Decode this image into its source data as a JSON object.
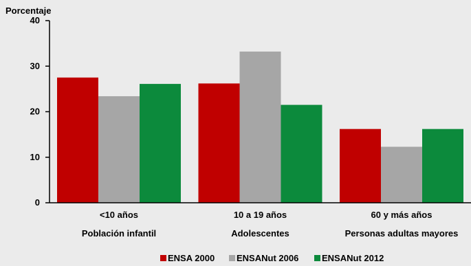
{
  "chart_data": {
    "type": "bar",
    "ylabel": "Porcentaje",
    "ylim": [
      0,
      40
    ],
    "yticks": [
      0,
      10,
      20,
      30,
      40
    ],
    "categories": [
      "<10 años",
      "10 a 19 años",
      "60 y más años"
    ],
    "group_labels": [
      "Población infantil",
      "Adolescentes",
      "Personas adultas mayores"
    ],
    "series": [
      {
        "name": "ENSA 2000",
        "color": "#c00000",
        "values": [
          27.5,
          26.2,
          16.2
        ]
      },
      {
        "name": "ENSANut 2006",
        "color": "#a6a6a6",
        "values": [
          23.4,
          33.2,
          12.3
        ]
      },
      {
        "name": "ENSANut 2012",
        "color": "#0c8a3c",
        "values": [
          26.1,
          21.5,
          16.2
        ]
      }
    ],
    "grid": false,
    "legend_position": "bottom-center"
  }
}
